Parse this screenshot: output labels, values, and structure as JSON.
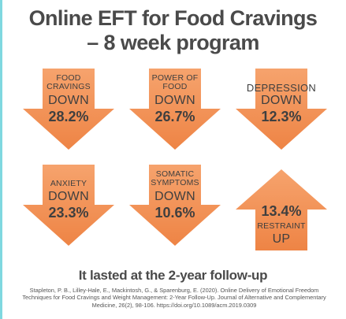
{
  "title": {
    "line1": "Online EFT for Food Cravings",
    "line2": "– 8 week program"
  },
  "arrows": [
    {
      "label_lines": [
        "FOOD",
        "CRAVINGS"
      ],
      "direction": "DOWN",
      "percent": "28.2%"
    },
    {
      "label_lines": [
        "POWER OF",
        "FOOD"
      ],
      "direction": "DOWN",
      "percent": "26.7%"
    },
    {
      "label_lines": [
        "DEPRESSION"
      ],
      "direction": "DOWN",
      "percent": "12.3%"
    },
    {
      "label_lines": [
        "ANXIETY"
      ],
      "direction": "DOWN",
      "percent": "23.3%"
    },
    {
      "label_lines": [
        "SOMATIC",
        "SYMPTOMS"
      ],
      "direction": "DOWN",
      "percent": "10.6%"
    },
    {
      "label_lines": [
        "RESTRAINT"
      ],
      "direction": "UP",
      "percent": "13.4%"
    }
  ],
  "footer": "It lasted at the 2-year follow-up",
  "citation": "Stapleton, P. B., Lilley-Hale, E., Mackintosh, G., & Sparenburg, E. (2020). Online Delivery of Emotional Freedom Techniques for Food Cravings and Weight Management: 2-Year Follow-Up. Journal of Alternative and Complementary Medicine, 26(2), 98-106. https://doi.org/10.1089/acm.2019.0309",
  "colors": {
    "arrow_fill": "#f4935a",
    "arrow_shade": "#e8783c",
    "text_dark": "#4a4a4a",
    "accent_bar": "#7fd8e0"
  }
}
